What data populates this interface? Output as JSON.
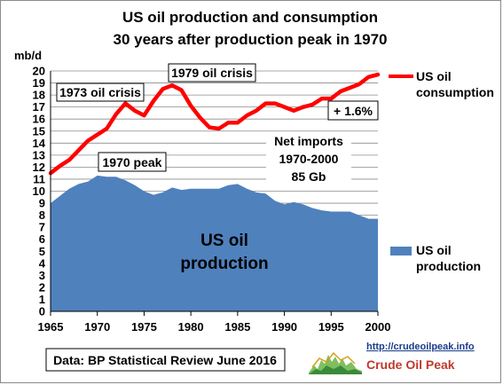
{
  "chart_data": {
    "type": "area+line",
    "title": [
      "US oil production and consumption",
      "30 years after production peak in 1970"
    ],
    "ylabel": "mb/d",
    "xlim": [
      1965,
      2000
    ],
    "ylim": [
      0,
      20
    ],
    "x_ticks": [
      1965,
      1970,
      1975,
      1980,
      1985,
      1990,
      1995,
      2000
    ],
    "y_ticks": [
      0,
      1,
      2,
      3,
      4,
      5,
      6,
      7,
      8,
      9,
      10,
      11,
      12,
      13,
      14,
      15,
      16,
      17,
      18,
      19,
      20
    ],
    "grid": "horizontal",
    "legend_position": "right",
    "series": [
      {
        "name": "US oil consumption",
        "kind": "line",
        "color": "#ff0000",
        "x": [
          1965,
          1966,
          1967,
          1968,
          1969,
          1970,
          1971,
          1972,
          1973,
          1974,
          1975,
          1976,
          1977,
          1978,
          1979,
          1980,
          1981,
          1982,
          1983,
          1984,
          1985,
          1986,
          1987,
          1988,
          1989,
          1990,
          1991,
          1992,
          1993,
          1994,
          1995,
          1996,
          1997,
          1998,
          1999,
          2000
        ],
        "y": [
          11.5,
          12.1,
          12.6,
          13.4,
          14.2,
          14.7,
          15.2,
          16.4,
          17.3,
          16.7,
          16.3,
          17.5,
          18.5,
          18.8,
          18.4,
          17.1,
          16.1,
          15.3,
          15.2,
          15.7,
          15.7,
          16.3,
          16.7,
          17.3,
          17.3,
          17.0,
          16.7,
          17.0,
          17.2,
          17.7,
          17.7,
          18.3,
          18.6,
          18.9,
          19.5,
          19.7
        ]
      },
      {
        "name": "US oil production",
        "kind": "area",
        "color": "#4f81bd",
        "x": [
          1965,
          1966,
          1967,
          1968,
          1969,
          1970,
          1971,
          1972,
          1973,
          1974,
          1975,
          1976,
          1977,
          1978,
          1979,
          1980,
          1981,
          1982,
          1983,
          1984,
          1985,
          1986,
          1987,
          1988,
          1989,
          1990,
          1991,
          1992,
          1993,
          1994,
          1995,
          1996,
          1997,
          1998,
          1999,
          2000
        ],
        "y": [
          9.0,
          9.6,
          10.2,
          10.6,
          10.8,
          11.3,
          11.2,
          11.2,
          10.9,
          10.5,
          10.0,
          9.7,
          9.9,
          10.3,
          10.1,
          10.2,
          10.2,
          10.2,
          10.2,
          10.5,
          10.6,
          10.2,
          9.9,
          9.8,
          9.2,
          8.9,
          9.1,
          8.9,
          8.6,
          8.4,
          8.3,
          8.3,
          8.3,
          8.0,
          7.7,
          7.7
        ]
      }
    ],
    "annotations": {
      "crisis_1973": "1973 oil crisis",
      "crisis_1979": "1979 oil crisis",
      "peak_1970": "1970 peak",
      "growth": "+ 1.6%",
      "net_imports": [
        "Net imports",
        "1970-2000",
        "85 Gb"
      ],
      "area_label": [
        "US oil",
        "production"
      ],
      "source": "Data: BP Statistical Review June 2016"
    },
    "legend": {
      "consumption": [
        "US oil",
        "consumption"
      ],
      "production": [
        "US oil",
        "production"
      ]
    }
  },
  "logo": {
    "url": "http://crudeoilpeak.info",
    "name": "Crude Oil Peak"
  }
}
